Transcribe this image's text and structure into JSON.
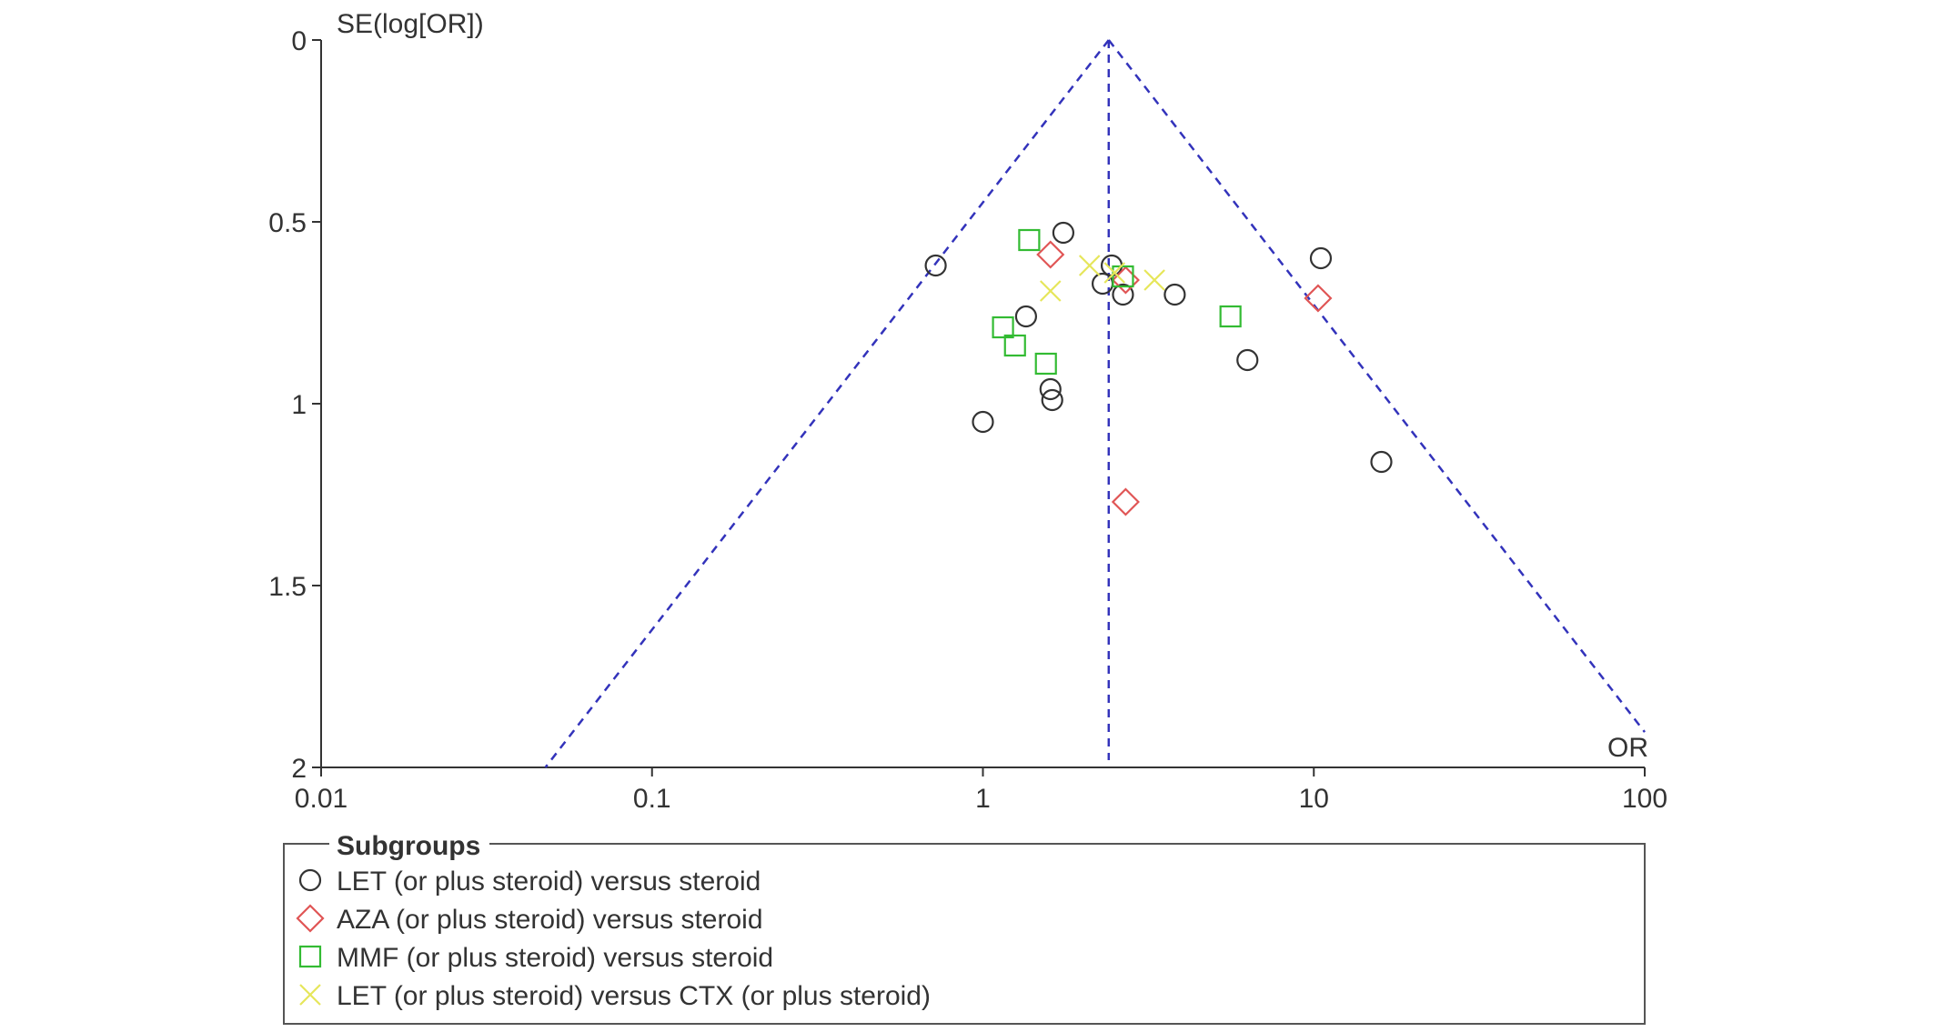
{
  "chart_data": {
    "type": "scatter",
    "subtype": "funnel plot",
    "ylabel": "SE(log[OR])",
    "xlabel": "OR",
    "x_scale": "log",
    "x_range": [
      0.01,
      100
    ],
    "x_ticks": [
      "0.01",
      "0.1",
      "1",
      "10",
      "100"
    ],
    "x_tick_values": [
      0.01,
      0.1,
      1,
      10,
      100
    ],
    "y_range": [
      0,
      2
    ],
    "y_reversed": true,
    "y_ticks": [
      "0",
      "0.5",
      "1",
      "1.5",
      "2"
    ],
    "y_tick_values": [
      0,
      0.5,
      1,
      1.5,
      2
    ],
    "pooled_or": 2.4,
    "funnel_color": "#3333bb",
    "legend": {
      "title": "Subgroups",
      "placement": "bottom"
    },
    "series": [
      {
        "name": "LET (or plus steroid) versus steroid",
        "marker": "circle",
        "color": "#333333",
        "points": [
          {
            "x": 0.72,
            "y": 0.62
          },
          {
            "x": 1.75,
            "y": 0.53
          },
          {
            "x": 2.45,
            "y": 0.62
          },
          {
            "x": 2.3,
            "y": 0.67
          },
          {
            "x": 2.65,
            "y": 0.7
          },
          {
            "x": 3.8,
            "y": 0.7
          },
          {
            "x": 10.5,
            "y": 0.6
          },
          {
            "x": 1.35,
            "y": 0.76
          },
          {
            "x": 6.3,
            "y": 0.88
          },
          {
            "x": 1.6,
            "y": 0.96
          },
          {
            "x": 1.62,
            "y": 0.99
          },
          {
            "x": 1.0,
            "y": 1.05
          },
          {
            "x": 16.0,
            "y": 1.16
          }
        ]
      },
      {
        "name": "AZA (or plus steroid) versus steroid",
        "marker": "diamond",
        "color": "#e05555",
        "points": [
          {
            "x": 1.6,
            "y": 0.59
          },
          {
            "x": 2.7,
            "y": 0.66
          },
          {
            "x": 10.3,
            "y": 0.71
          },
          {
            "x": 2.7,
            "y": 1.27
          }
        ]
      },
      {
        "name": "MMF (or plus steroid) versus steroid",
        "marker": "square",
        "color": "#33bb33",
        "points": [
          {
            "x": 1.38,
            "y": 0.55
          },
          {
            "x": 2.65,
            "y": 0.65
          },
          {
            "x": 5.6,
            "y": 0.76
          },
          {
            "x": 1.15,
            "y": 0.79
          },
          {
            "x": 1.25,
            "y": 0.84
          },
          {
            "x": 1.55,
            "y": 0.89
          }
        ]
      },
      {
        "name": "LET (or plus steroid) versus CTX (or plus steroid)",
        "marker": "cross",
        "color": "#e6e65a",
        "points": [
          {
            "x": 2.1,
            "y": 0.62
          },
          {
            "x": 2.5,
            "y": 0.64
          },
          {
            "x": 3.3,
            "y": 0.66
          },
          {
            "x": 1.6,
            "y": 0.69
          }
        ]
      }
    ]
  }
}
